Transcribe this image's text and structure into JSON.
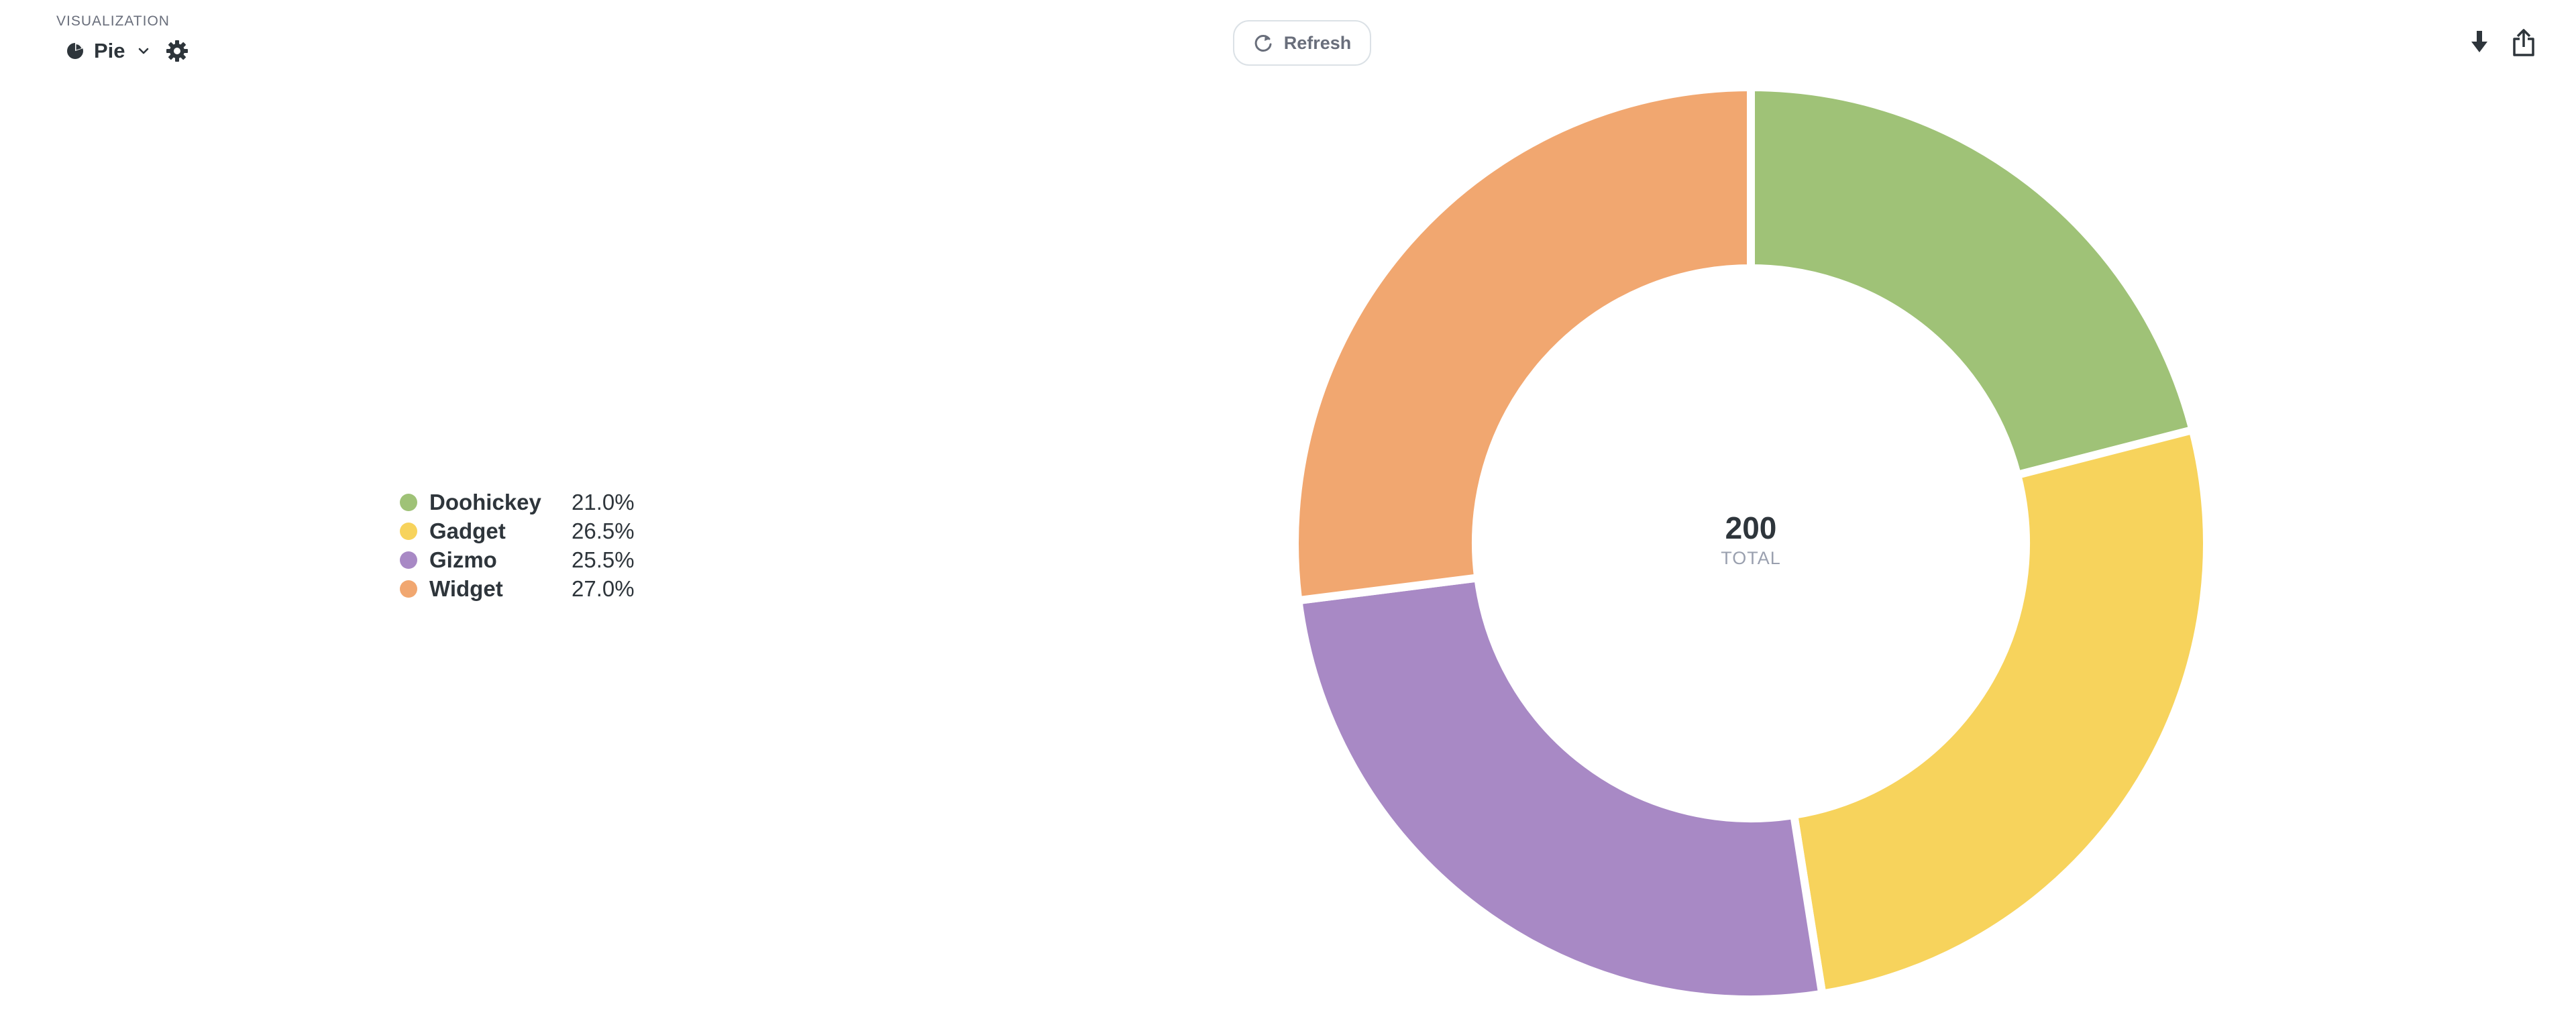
{
  "header": {
    "caption": "VISUALIZATION",
    "viz_type": "Pie",
    "viz_icon": "pie-chart-icon",
    "settings_icon": "gear-icon",
    "chevron_icon": "chevron-down-icon"
  },
  "toolbar": {
    "refresh_label": "Refresh",
    "refresh_icon": "refresh-icon",
    "download_icon": "download-icon",
    "share_icon": "share-icon"
  },
  "center": {
    "total": "200",
    "caption": "TOTAL"
  },
  "legend": [
    {
      "label": "Doohickey",
      "percent": "21.0%",
      "color": "#9fc277"
    },
    {
      "label": "Gadget",
      "percent": "26.5%",
      "color": "#f7d35c"
    },
    {
      "label": "Gizmo",
      "percent": "25.5%",
      "color": "#a889c5"
    },
    {
      "label": "Widget",
      "percent": "27.0%",
      "color": "#f1a770"
    }
  ],
  "chart_data": {
    "type": "pie",
    "donut": true,
    "categories": [
      "Doohickey",
      "Gadget",
      "Gizmo",
      "Widget"
    ],
    "values": [
      42,
      53,
      51,
      54
    ],
    "percentages": [
      21.0,
      26.5,
      25.5,
      27.0
    ],
    "colors": [
      "#9fc277",
      "#f7d35c",
      "#a889c5",
      "#f1a770"
    ],
    "total": 200,
    "legend_position": "left"
  }
}
